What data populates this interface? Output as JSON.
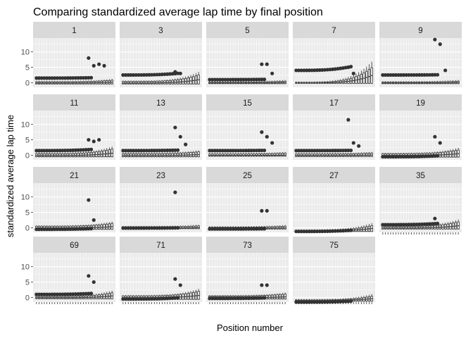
{
  "chart_data": {
    "type": "boxplot",
    "title": "Comparing standardized average lap time by final position",
    "xlabel": "Position number",
    "ylabel": "standardized average lap time",
    "ylim": [
      -1.5,
      14.5
    ],
    "yticks": [
      0,
      5,
      10
    ],
    "grid": true,
    "facets": [
      {
        "label": "1",
        "median": -0.1,
        "q1": -0.4,
        "q3": 0.3,
        "outlier": 1.5,
        "trend": 0.8,
        "peaks": [
          8,
          5.5,
          6,
          5.5
        ]
      },
      {
        "label": "3",
        "median": -0.1,
        "q1": -0.4,
        "q3": 0.4,
        "outlier": 2.5,
        "trend": 3.5,
        "peaks": [
          3.5,
          3
        ]
      },
      {
        "label": "5",
        "median": -0.1,
        "q1": -0.3,
        "q3": 0.2,
        "outlier": 1.0,
        "trend": 0.5,
        "peaks": [
          6,
          6,
          3
        ]
      },
      {
        "label": "7",
        "median": -0.1,
        "q1": -0.2,
        "q3": 0.1,
        "outlier": 4.0,
        "trend": 8.0,
        "peaks": [
          5,
          3
        ]
      },
      {
        "label": "9",
        "median": -0.1,
        "q1": -0.3,
        "q3": 0.2,
        "outlier": 2.5,
        "trend": 0.5,
        "peaks": [
          14,
          12.5,
          4
        ]
      },
      {
        "label": "11",
        "median": -0.1,
        "q1": -0.5,
        "q3": 0.5,
        "outlier": 1.5,
        "trend": 2.5,
        "peaks": [
          5,
          4.5,
          5
        ]
      },
      {
        "label": "13",
        "median": -0.1,
        "q1": -0.5,
        "q3": 0.5,
        "outlier": 1.5,
        "trend": 1.0,
        "peaks": [
          9,
          6,
          3.5
        ]
      },
      {
        "label": "15",
        "median": -0.1,
        "q1": -0.3,
        "q3": 0.4,
        "outlier": 1.5,
        "trend": 0.5,
        "peaks": [
          7.5,
          6,
          4
        ]
      },
      {
        "label": "17",
        "median": -0.1,
        "q1": -0.4,
        "q3": 0.4,
        "outlier": 1.5,
        "trend": 0.5,
        "peaks": [
          11.5,
          4,
          3
        ]
      },
      {
        "label": "19",
        "median": -0.1,
        "q1": -0.6,
        "q3": 0.5,
        "outlier": -0.5,
        "trend": 2.0,
        "peaks": [
          6,
          4
        ]
      },
      {
        "label": "21",
        "median": -0.1,
        "q1": -0.5,
        "q3": 0.5,
        "outlier": -0.5,
        "trend": 1.5,
        "peaks": [
          9,
          2.5
        ]
      },
      {
        "label": "23",
        "median": -0.1,
        "q1": -0.3,
        "q3": 0.3,
        "outlier": -0.1,
        "trend": 0.5,
        "peaks": [
          11.5
        ]
      },
      {
        "label": "25",
        "median": -0.2,
        "q1": -0.4,
        "q3": 0.2,
        "outlier": -0.4,
        "trend": 0.5,
        "peaks": [
          5.5,
          5.5
        ]
      },
      {
        "label": "27",
        "median": -1.0,
        "q1": -1.2,
        "q3": -0.8,
        "outlier": -1.2,
        "trend": 2.5,
        "peaks": []
      },
      {
        "label": "35",
        "median": -0.1,
        "q1": -0.4,
        "q3": 0.4,
        "outlier": 1.0,
        "trend": 2.5,
        "peaks": [
          3
        ]
      },
      {
        "label": "69",
        "median": -0.1,
        "q1": -0.4,
        "q3": 0.3,
        "outlier": 1.0,
        "trend": 2.0,
        "peaks": [
          7,
          5
        ]
      },
      {
        "label": "71",
        "median": -0.1,
        "q1": -0.6,
        "q3": 0.5,
        "outlier": -0.5,
        "trend": 2.5,
        "peaks": [
          6,
          4
        ]
      },
      {
        "label": "73",
        "median": -0.1,
        "q1": -0.5,
        "q3": 0.5,
        "outlier": -0.3,
        "trend": 1.0,
        "peaks": [
          4,
          4
        ]
      },
      {
        "label": "75",
        "median": -1.0,
        "q1": -1.2,
        "q3": -0.8,
        "outlier": -1.5,
        "trend": 2.0,
        "peaks": []
      }
    ]
  }
}
